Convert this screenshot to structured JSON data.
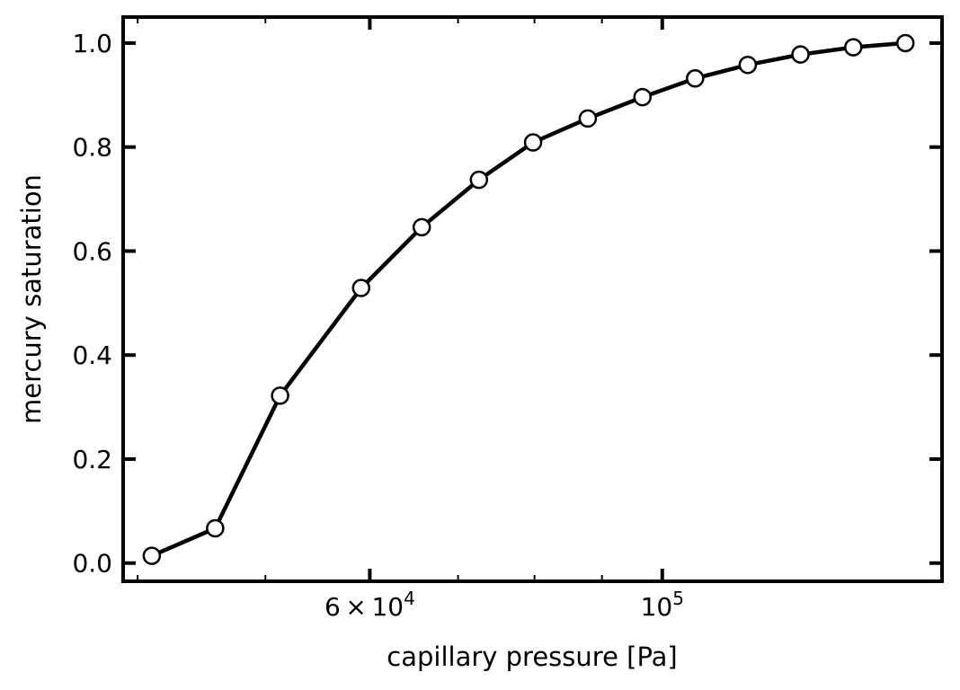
{
  "chart_data": {
    "type": "line",
    "title": "",
    "xlabel": "capillary pressure [Pa]",
    "ylabel": "mercury saturation",
    "xscale": "log",
    "xlim": [
      39000,
      163000
    ],
    "ylim": [
      -0.035,
      1.05
    ],
    "grid": false,
    "legend": "none",
    "x_major_ticks": [
      {
        "value": 60000,
        "mantissa": "6",
        "base": "10",
        "exp": "4"
      },
      {
        "value": 100000,
        "mantissa": "",
        "base": "10",
        "exp": "5"
      }
    ],
    "x_minor_ticks": [
      40000,
      50000,
      70000,
      80000,
      90000
    ],
    "y_ticks": [
      "0.0",
      "0.2",
      "0.4",
      "0.6",
      "0.8",
      "1.0"
    ],
    "series": [
      {
        "line_color": "#000000",
        "marker": "circle",
        "marker_fill": "#ffffff",
        "x": [
          41000,
          45800,
          51300,
          59100,
          65700,
          72600,
          79800,
          87800,
          96600,
          105900,
          116100,
          127300,
          139600,
          152900
        ],
        "y": [
          0.014,
          0.067,
          0.322,
          0.529,
          0.646,
          0.737,
          0.809,
          0.855,
          0.896,
          0.932,
          0.958,
          0.978,
          0.992,
          1.0
        ]
      }
    ]
  }
}
